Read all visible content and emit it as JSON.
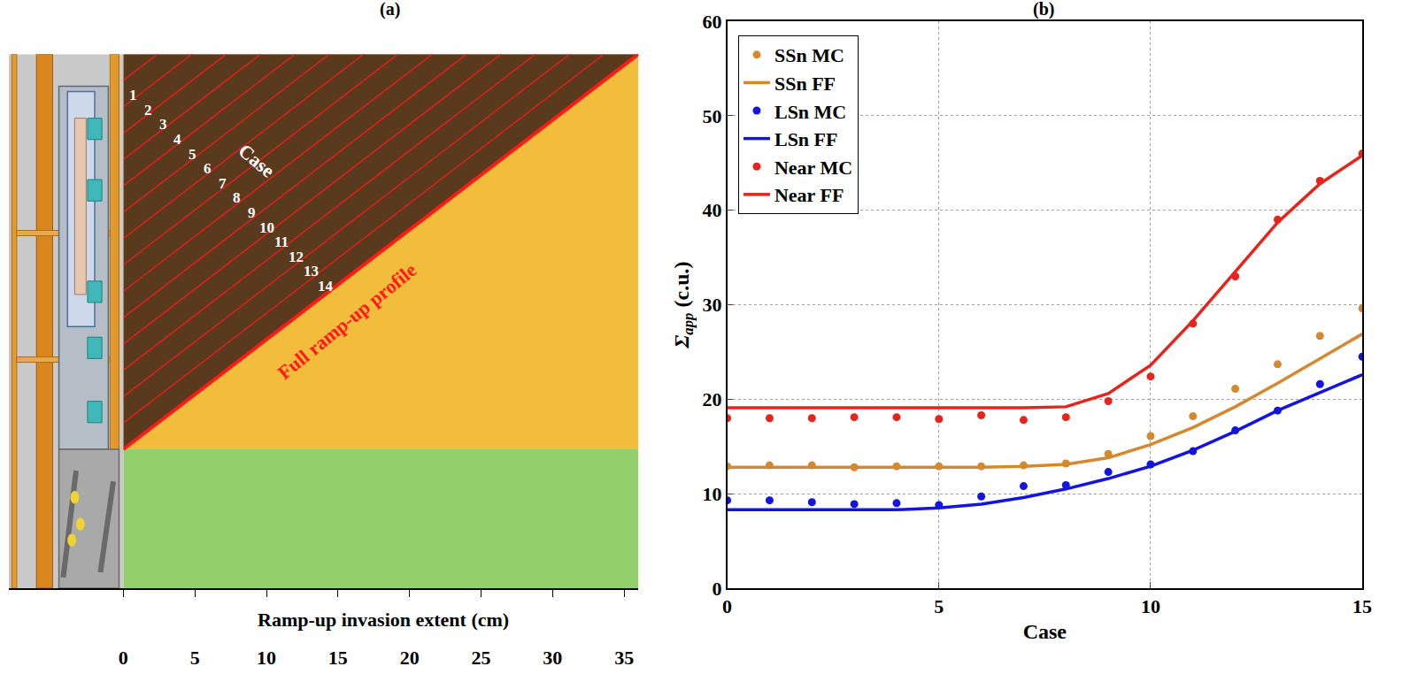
{
  "diagram": {
    "title": "(a)",
    "case_label": "Case",
    "cases": [
      1,
      2,
      3,
      4,
      5,
      6,
      7,
      8,
      9,
      10,
      11,
      12,
      13,
      14
    ],
    "profile_label": "Full ramp-up profile",
    "xlabel": "Ramp-up invasion extent (cm)",
    "xlim": [
      -8,
      36
    ],
    "xticks": [
      0,
      5,
      10,
      15,
      20,
      25,
      30,
      35
    ]
  },
  "chart_data": {
    "type": "scatter",
    "title": "(b)",
    "xlabel": "Case",
    "ylabel": "Σ",
    "ylabel_subscript": "app",
    "ylabel_unit": "(c.u.)",
    "x": [
      0,
      1,
      2,
      3,
      4,
      5,
      6,
      7,
      8,
      9,
      10,
      11,
      12,
      13,
      14,
      15
    ],
    "xlim": [
      0,
      15
    ],
    "xticks": [
      0,
      5,
      10,
      15
    ],
    "ylim": [
      0,
      60
    ],
    "yticks": [
      0,
      10,
      20,
      30,
      40,
      50,
      60
    ],
    "grid": true,
    "legend": "upper left",
    "series": [
      {
        "name": "SSn MC",
        "type": "scatter",
        "marker": "circle",
        "color": "#d4892f",
        "values": [
          12.9,
          13.0,
          13.0,
          12.8,
          12.9,
          12.9,
          12.9,
          13.0,
          13.2,
          14.2,
          16.1,
          18.2,
          21.1,
          23.7,
          26.7,
          29.6
        ]
      },
      {
        "name": "SSn FF",
        "type": "line",
        "line_style": "solid",
        "color": "#d4892f",
        "values": [
          12.8,
          12.8,
          12.8,
          12.8,
          12.8,
          12.8,
          12.8,
          12.9,
          13.1,
          13.8,
          15.2,
          17.0,
          19.2,
          21.7,
          24.3,
          26.9
        ]
      },
      {
        "name": "LSn MC",
        "type": "scatter",
        "marker": "circle",
        "color": "#1414e0",
        "values": [
          9.3,
          9.3,
          9.1,
          8.9,
          9.0,
          8.8,
          9.7,
          10.8,
          10.9,
          12.3,
          13.1,
          14.5,
          16.7,
          18.8,
          21.6,
          24.5
        ]
      },
      {
        "name": "LSn FF",
        "type": "line",
        "line_style": "solid",
        "color": "#1414e0",
        "values": [
          8.3,
          8.3,
          8.3,
          8.3,
          8.3,
          8.5,
          8.9,
          9.6,
          10.5,
          11.6,
          12.9,
          14.6,
          16.6,
          18.8,
          20.7,
          22.6
        ]
      },
      {
        "name": "Near MC",
        "type": "scatter",
        "marker": "circle",
        "color": "#e8231b",
        "values": [
          18.0,
          18.0,
          18.0,
          18.1,
          18.1,
          17.9,
          18.3,
          17.8,
          18.1,
          19.8,
          22.4,
          28.0,
          33.0,
          39.0,
          43.1,
          46.0
        ]
      },
      {
        "name": "Near FF",
        "type": "line",
        "line_style": "solid",
        "color": "#e8231b",
        "values": [
          19.1,
          19.1,
          19.1,
          19.1,
          19.1,
          19.1,
          19.1,
          19.1,
          19.2,
          20.6,
          23.6,
          28.3,
          33.5,
          38.7,
          42.8,
          45.8
        ]
      }
    ]
  }
}
